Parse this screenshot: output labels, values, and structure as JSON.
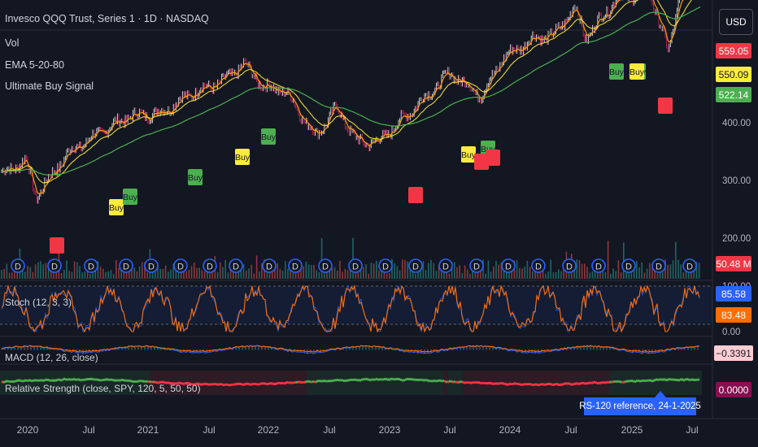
{
  "header": {
    "title": "Invesco QQQ Trust, Series 1 · 1D · NASDAQ",
    "indicators": [
      "Vol",
      "EMA 5-20-80",
      "Ultimate Buy Signal"
    ]
  },
  "currency_button": "USD",
  "price_tags": [
    {
      "text": "559.05",
      "bg": "#f23645",
      "fg": "#ffffff"
    },
    {
      "text": "550.09",
      "bg": "#ffeb3b",
      "fg": "#131722"
    },
    {
      "text": "522.14",
      "bg": "#4caf50",
      "fg": "#ffffff"
    },
    {
      "text": "50.48 M",
      "bg": "#f23645",
      "fg": "#ffffff"
    },
    {
      "text": "85.58",
      "bg": "#2962ff",
      "fg": "#ffffff"
    },
    {
      "text": "83.48",
      "bg": "#ff6d00",
      "fg": "#ffffff"
    },
    {
      "text": "−0.3391",
      "bg": "#ffcdd2",
      "fg": "#131722"
    },
    {
      "text": "0.0000",
      "bg": "#880e4f",
      "fg": "#ffffff"
    }
  ],
  "price_axis": [
    "400.00",
    "300.00",
    "200.00",
    "100.00",
    "0.00"
  ],
  "panes": {
    "stoch": "Stoch (12, 3, 3)",
    "macd": "MACD (12, 26, close)",
    "rs": "Relative Strength (close, SPY, 120, 5, 50, 50)"
  },
  "rs_note": "RS-120 reference, 24-1-2025",
  "time_axis": [
    "2020",
    "Jul",
    "2021",
    "Jul",
    "2022",
    "Jul",
    "2023",
    "Jul",
    "2024",
    "Jul",
    "2025",
    "Jul"
  ],
  "signals": {
    "buy_label": "Buy",
    "dividend_label": "D",
    "buy_colors": [
      "#ffeb3b",
      "#4caf50"
    ],
    "sell_color": "#f23645"
  },
  "colors": {
    "background": "#131722",
    "candle_up": "#ffffff",
    "candle_down": "#e91e63",
    "ema_fast": "#ff9800",
    "ema_mid": "#ffeb3b",
    "ema_slow": "#4caf50",
    "stoch_k": "#ff6d00",
    "stoch_d": "#2962ff",
    "macd": "#2962ff",
    "signal": "#ff6d00",
    "rs_pos": "#4caf50",
    "rs_neg": "#f23645"
  },
  "chart_data": {
    "type": "line",
    "series": [
      {
        "name": "Invesco QQQ Trust, Series 1",
        "dates": [
          "2019-12",
          "2020-02",
          "2020-03",
          "2020-06",
          "2020-09",
          "2020-12",
          "2021-03",
          "2021-06",
          "2021-09",
          "2021-11",
          "2022-01",
          "2022-03",
          "2022-06",
          "2022-08",
          "2022-10",
          "2022-12",
          "2023-02",
          "2023-05",
          "2023-07",
          "2023-10",
          "2023-12",
          "2024-03",
          "2024-05",
          "2024-07",
          "2024-08",
          "2024-11",
          "2025-01",
          "2025-02",
          "2025-04",
          "2025-05",
          "2025-07"
        ],
        "values": [
          212,
          235,
          170,
          245,
          280,
          310,
          315,
          350,
          370,
          400,
          360,
          355,
          275,
          325,
          265,
          265,
          300,
          350,
          385,
          345,
          410,
          445,
          450,
          500,
          445,
          515,
          520,
          535,
          420,
          510,
          559
        ]
      }
    ],
    "ylim": [
      0,
      570
    ]
  }
}
